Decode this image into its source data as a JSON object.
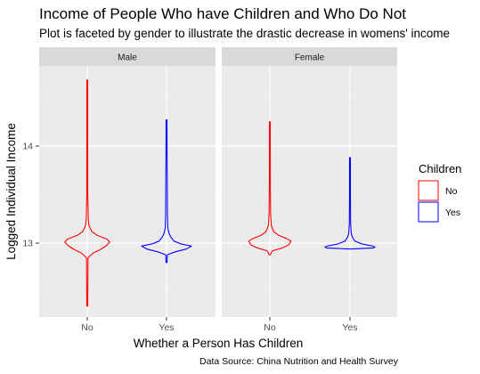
{
  "chart_data": {
    "type": "violin",
    "title": "Income of People Who have Children and Who Do Not",
    "subtitle": "Plot is faceted by gender to illustrate the drastic decrease in womens' income",
    "caption": "Data Source: China Nutrition and Health Survey",
    "xlabel": "Whether a Person Has Children",
    "ylabel": "Logged Individual Income",
    "categories": [
      "No",
      "Yes"
    ],
    "y_ticks": [
      13,
      14
    ],
    "ylim": [
      12.25,
      14.85
    ],
    "legend": {
      "title": "Children",
      "position": "right",
      "entries": [
        {
          "label": "No",
          "color": "#ff0000"
        },
        {
          "label": "Yes",
          "color": "#0000ff"
        }
      ]
    },
    "background": {
      "panel": "#ebebeb",
      "strip": "#d9d9d9",
      "grid": "white"
    },
    "facets": [
      {
        "label": "Male",
        "violins": [
          {
            "category": "No",
            "color": "#ff0000",
            "min": 12.35,
            "max": 14.68,
            "center": 13.0,
            "profile": [
              [
                12.35,
                0.01
              ],
              [
                12.85,
                0.03
              ],
              [
                12.9,
                0.25
              ],
              [
                12.93,
                0.5
              ],
              [
                12.97,
                0.75
              ],
              [
                13.01,
                0.9
              ],
              [
                13.04,
                0.8
              ],
              [
                13.08,
                0.4
              ],
              [
                13.12,
                0.18
              ],
              [
                13.18,
                0.07
              ],
              [
                13.25,
                0.04
              ],
              [
                13.5,
                0.02
              ],
              [
                14.0,
                0.015
              ],
              [
                14.68,
                0.01
              ]
            ]
          },
          {
            "category": "Yes",
            "color": "#0000ff",
            "min": 12.8,
            "max": 14.27,
            "center": 12.96,
            "profile": [
              [
                12.8,
                0.02
              ],
              [
                12.88,
                0.03
              ],
              [
                12.91,
                0.35
              ],
              [
                12.94,
                0.8
              ],
              [
                12.97,
                1.0
              ],
              [
                12.99,
                0.6
              ],
              [
                13.02,
                0.3
              ],
              [
                13.06,
                0.18
              ],
              [
                13.1,
                0.1
              ],
              [
                13.16,
                0.05
              ],
              [
                13.3,
                0.035
              ],
              [
                13.6,
                0.03
              ],
              [
                14.0,
                0.02
              ],
              [
                14.27,
                0.01
              ]
            ]
          }
        ]
      },
      {
        "label": "Female",
        "violins": [
          {
            "category": "No",
            "color": "#ff0000",
            "min": 12.88,
            "max": 14.25,
            "center": 13.0,
            "profile": [
              [
                12.88,
                0.02
              ],
              [
                12.92,
                0.1
              ],
              [
                12.95,
                0.5
              ],
              [
                12.98,
                0.75
              ],
              [
                13.02,
                0.85
              ],
              [
                13.05,
                0.65
              ],
              [
                13.08,
                0.35
              ],
              [
                13.12,
                0.15
              ],
              [
                13.18,
                0.06
              ],
              [
                13.3,
                0.03
              ],
              [
                13.6,
                0.02
              ],
              [
                14.25,
                0.01
              ]
            ]
          },
          {
            "category": "Yes",
            "color": "#0000ff",
            "min": 12.94,
            "max": 13.88,
            "center": 12.96,
            "profile": [
              [
                12.94,
                0.1
              ],
              [
                12.95,
                0.95
              ],
              [
                12.96,
                1.0
              ],
              [
                12.97,
                0.9
              ],
              [
                12.99,
                0.5
              ],
              [
                13.02,
                0.2
              ],
              [
                13.06,
                0.1
              ],
              [
                13.1,
                0.05
              ],
              [
                13.2,
                0.025
              ],
              [
                13.5,
                0.015
              ],
              [
                13.88,
                0.01
              ]
            ]
          }
        ]
      }
    ]
  }
}
